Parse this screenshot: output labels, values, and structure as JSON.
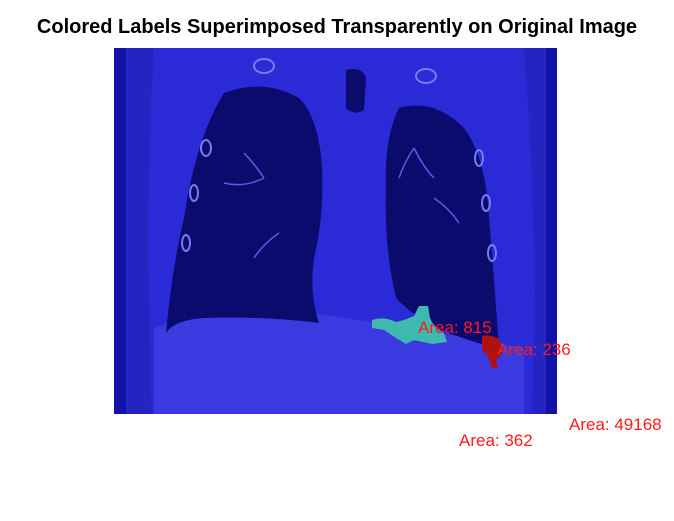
{
  "figure": {
    "title": "Colored Labels Superimposed Transparently on Original Image",
    "colors": {
      "overlay": "#2a2ad6",
      "lung": "#0b0b6e",
      "region_cyan": "#3fb8b0",
      "region_red": "#b01010",
      "label_text": "#ff1a1a"
    }
  },
  "labels": [
    {
      "text": "Area: 815"
    },
    {
      "text": "Area: 236"
    },
    {
      "text": "Area: 362"
    },
    {
      "text": "Area: 49168"
    }
  ]
}
